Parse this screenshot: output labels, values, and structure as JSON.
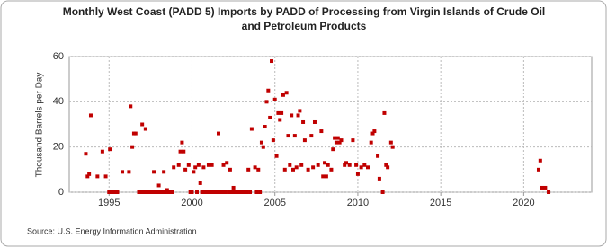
{
  "chart_data": {
    "type": "scatter",
    "title": [
      "Monthly West Coast (PADD 5) Imports by PADD of Processing from Virgin Islands of Crude Oil",
      "and Petroleum Products"
    ],
    "y_label": "Thousand Barrels per Day",
    "source": "Source: U.S. Energy Information Administration",
    "xlim": [
      1992.6,
      2024.1
    ],
    "xticks": [
      1995,
      2000,
      2005,
      2010,
      2015,
      2020
    ],
    "ylim": [
      0,
      60
    ],
    "yticks": [
      0,
      20,
      40,
      60
    ],
    "grid": true,
    "series": [
      {
        "color": "#c00000",
        "x": [
          1993.6,
          1993.7,
          1993.8,
          1993.9,
          1994.3,
          1994.6,
          1994.8,
          1995.05,
          1995.8,
          1996.2,
          1996.3,
          1996.4,
          1996.5,
          1996.6,
          1997.0,
          1997.2,
          1997.7,
          1998.0,
          1998.3,
          1998.5,
          1998.9,
          1999.2,
          1999.3,
          1999.4,
          1999.5,
          1999.6,
          1999.8,
          2000.1,
          2000.2,
          2000.4,
          2000.5,
          2000.7,
          2001.0,
          2001.2,
          2001.6,
          2001.9,
          2002.1,
          2002.3,
          2002.5,
          2003.4,
          2003.6,
          2003.8,
          2004.0,
          2004.2,
          2004.3,
          2004.4,
          2004.5,
          2004.6,
          2004.7,
          2004.8,
          2004.9,
          2005.0,
          2005.1,
          2005.2,
          2005.3,
          2005.4,
          2005.5,
          2005.6,
          2005.7,
          2005.8,
          2005.9,
          2006.0,
          2006.1,
          2006.2,
          2006.3,
          2006.4,
          2006.5,
          2006.6,
          2006.7,
          2006.8,
          2007.0,
          2007.2,
          2007.3,
          2007.4,
          2007.6,
          2007.8,
          2007.9,
          2008.0,
          2008.1,
          2008.2,
          2008.4,
          2008.5,
          2008.6,
          2008.7,
          2008.8,
          2008.9,
          2009.0,
          2009.2,
          2009.3,
          2009.5,
          2009.7,
          2009.9,
          2010.0,
          2010.2,
          2010.4,
          2010.6,
          2010.8,
          2010.9,
          2011.0,
          2011.2,
          2011.3,
          2011.6,
          2011.7,
          2011.8,
          2012.0,
          2012.1,
          2020.9,
          2021.0,
          2021.1,
          2021.3,
          1995.0,
          1995.1,
          1995.2,
          1995.3,
          1995.4,
          1995.5,
          1996.8,
          1996.9,
          1997.1,
          1997.3,
          1997.4,
          1997.5,
          1997.6,
          1997.8,
          1997.9,
          1998.1,
          1998.2,
          1998.4,
          1998.6,
          1998.7,
          1998.8,
          1999.9,
          2000.0,
          2000.3,
          2000.6,
          2000.8,
          2000.9,
          2001.1,
          2001.3,
          2001.4,
          2001.5,
          2001.7,
          2001.8,
          2002.0,
          2002.2,
          2002.4,
          2002.6,
          2002.7,
          2002.8,
          2002.9,
          2003.0,
          2003.1,
          2003.2,
          2003.3,
          2003.5,
          2003.9,
          2004.1,
          2011.5,
          2021.5
        ],
        "values": [
          17,
          7,
          8,
          34,
          7,
          18,
          7,
          19,
          9,
          9,
          38,
          20,
          26,
          26,
          30,
          28,
          9,
          3,
          9,
          1,
          11,
          12,
          18,
          22,
          18,
          10,
          12,
          9,
          11,
          12,
          4,
          11,
          12,
          12,
          26,
          12,
          13,
          10,
          2,
          10,
          28,
          11,
          10,
          22,
          20,
          29,
          40,
          45,
          33,
          58,
          23,
          41,
          16,
          35,
          32,
          35,
          43,
          10,
          44,
          25,
          12,
          34,
          10,
          25,
          11,
          34,
          36,
          12,
          31,
          23,
          10,
          25,
          11,
          31,
          12,
          27,
          7,
          13,
          7,
          12,
          10,
          19,
          24,
          22,
          24,
          22,
          23,
          12,
          13,
          12,
          23,
          12,
          8,
          11,
          12,
          11,
          22,
          26,
          27,
          16,
          6,
          35,
          12,
          11,
          22,
          20,
          10,
          14,
          2,
          2,
          0,
          0,
          0,
          0,
          0,
          0,
          0,
          0,
          0,
          0,
          0,
          0,
          0,
          0,
          0,
          0,
          0,
          0,
          0,
          0,
          0,
          0,
          0,
          0,
          0,
          0,
          0,
          0,
          0,
          0,
          0,
          0,
          0,
          0,
          0,
          0,
          0,
          0,
          0,
          0,
          0,
          0,
          0,
          0,
          0,
          0,
          0,
          0,
          0
        ]
      }
    ]
  }
}
